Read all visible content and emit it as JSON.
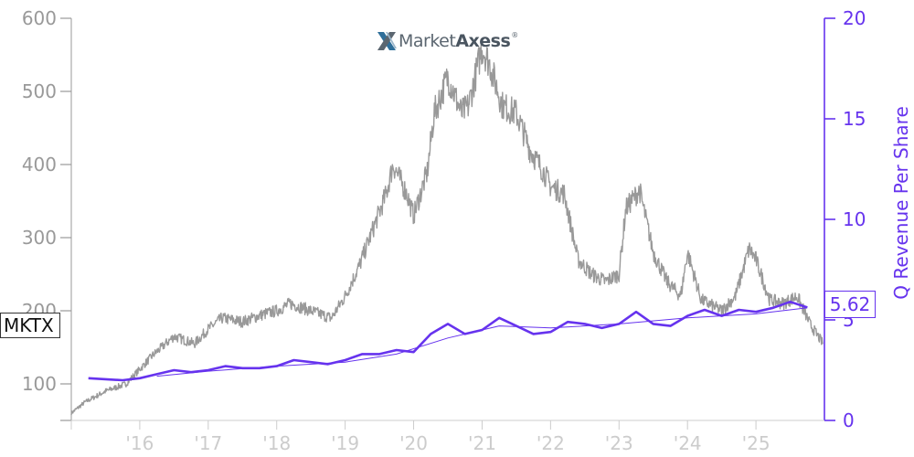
{
  "ticker": "MKTX",
  "logo": {
    "brand_light": "Market",
    "brand_bold": "Axess",
    "icon": "marketaxess-x-logo-icon"
  },
  "colors": {
    "price": "#999999",
    "revenue": "#6633ee",
    "axis_left": "#999999",
    "axis_x": "#cccccc",
    "axis_right": "#6633ee"
  },
  "chart_data": {
    "type": "line",
    "title": "",
    "xlabel": "",
    "ylabel": "",
    "y2label": "Q Revenue Per Share",
    "x_tick_labels": [
      "'16",
      "'17",
      "'18",
      "'19",
      "'20",
      "'21",
      "'22",
      "'23",
      "'24",
      "'25"
    ],
    "x_tick_years": [
      2016,
      2017,
      2018,
      2019,
      2020,
      2021,
      2022,
      2023,
      2024,
      2025
    ],
    "xlim": [
      2015.0,
      2026.0
    ],
    "ylim": [
      50,
      600
    ],
    "yticks": [
      100,
      200,
      300,
      400,
      500,
      600
    ],
    "y2lim": [
      0,
      20
    ],
    "y2ticks": [
      0,
      5,
      10,
      15,
      20
    ],
    "last_value_label": "5.62",
    "grid": false,
    "legend": "none",
    "series": [
      {
        "axis": "left",
        "x": [
          2015.0,
          2015.2,
          2015.5,
          2015.8,
          2016.0,
          2016.2,
          2016.5,
          2016.8,
          2017.0,
          2017.2,
          2017.5,
          2017.8,
          2018.0,
          2018.2,
          2018.5,
          2018.8,
          2019.0,
          2019.2,
          2019.4,
          2019.6,
          2019.7,
          2019.9,
          2020.0,
          2020.2,
          2020.3,
          2020.5,
          2020.7,
          2020.8,
          2021.0,
          2021.1,
          2021.3,
          2021.5,
          2021.7,
          2021.9,
          2022.0,
          2022.2,
          2022.4,
          2022.6,
          2022.8,
          2023.0,
          2023.1,
          2023.3,
          2023.5,
          2023.7,
          2023.9,
          2024.0,
          2024.2,
          2024.5,
          2024.7,
          2024.9,
          2025.0,
          2025.2,
          2025.4,
          2025.6,
          2025.8,
          2025.98
        ],
        "values": [
          60,
          75,
          90,
          100,
          120,
          140,
          165,
          155,
          175,
          190,
          185,
          195,
          200,
          210,
          200,
          190,
          220,
          260,
          310,
          360,
          400,
          360,
          330,
          390,
          470,
          520,
          470,
          480,
          560,
          540,
          480,
          470,
          420,
          390,
          370,
          360,
          270,
          250,
          240,
          250,
          340,
          365,
          280,
          240,
          220,
          280,
          215,
          200,
          220,
          285,
          270,
          215,
          210,
          220,
          180,
          155
        ]
      },
      {
        "axis": "right",
        "x": [
          2015.25,
          2015.5,
          2015.75,
          2016.0,
          2016.25,
          2016.5,
          2016.75,
          2017.0,
          2017.25,
          2017.5,
          2017.75,
          2018.0,
          2018.25,
          2018.5,
          2018.75,
          2019.0,
          2019.25,
          2019.5,
          2019.75,
          2020.0,
          2020.25,
          2020.5,
          2020.75,
          2021.0,
          2021.25,
          2021.5,
          2021.75,
          2022.0,
          2022.25,
          2022.5,
          2022.75,
          2023.0,
          2023.25,
          2023.5,
          2023.75,
          2024.0,
          2024.25,
          2024.5,
          2024.75,
          2025.0,
          2025.25,
          2025.5,
          2025.75
        ],
        "values": [
          2.1,
          2.05,
          2.0,
          2.1,
          2.3,
          2.5,
          2.4,
          2.5,
          2.7,
          2.6,
          2.6,
          2.7,
          3.0,
          2.9,
          2.8,
          3.0,
          3.3,
          3.3,
          3.5,
          3.4,
          4.3,
          4.8,
          4.3,
          4.5,
          5.1,
          4.7,
          4.3,
          4.4,
          4.9,
          4.8,
          4.6,
          4.8,
          5.4,
          4.8,
          4.7,
          5.2,
          5.5,
          5.2,
          5.5,
          5.4,
          5.6,
          5.9,
          5.62
        ]
      },
      {
        "axis": "right",
        "x": [
          2016.25,
          2017.0,
          2018.0,
          2019.0,
          2019.75,
          2020.5,
          2021.25,
          2022.0,
          2023.0,
          2024.0,
          2025.0,
          2025.75
        ],
        "values": [
          2.2,
          2.45,
          2.7,
          2.9,
          3.3,
          4.1,
          4.7,
          4.6,
          4.8,
          5.1,
          5.3,
          5.6
        ]
      }
    ]
  }
}
